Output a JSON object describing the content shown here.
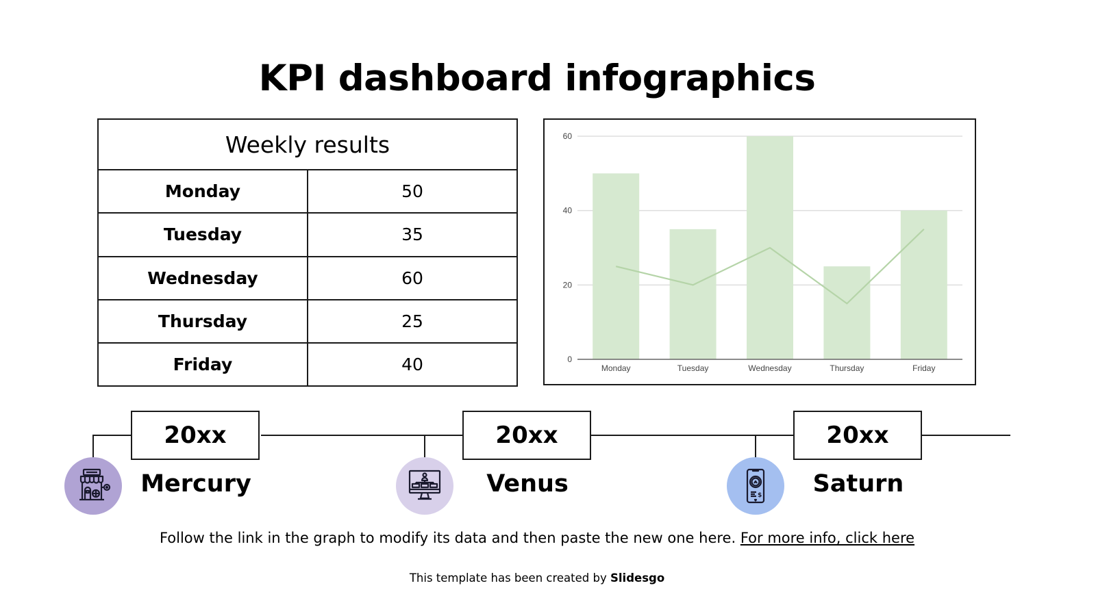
{
  "title": "KPI dashboard infographics",
  "table": {
    "header": "Weekly results",
    "rows": [
      {
        "day": "Monday",
        "value": "50"
      },
      {
        "day": "Tuesday",
        "value": "35"
      },
      {
        "day": "Wednesday",
        "value": "60"
      },
      {
        "day": "Thursday",
        "value": "25"
      },
      {
        "day": "Friday",
        "value": "40"
      }
    ]
  },
  "chart_data": {
    "type": "bar",
    "title": "",
    "xlabel": "",
    "ylabel": "",
    "categories": [
      "Monday",
      "Tuesday",
      "Wednesday",
      "Thursday",
      "Friday"
    ],
    "series": [
      {
        "name": "Bars",
        "type": "bar",
        "color": "#d6e9d0",
        "values": [
          50,
          35,
          60,
          25,
          40
        ]
      },
      {
        "name": "Line",
        "type": "line",
        "color": "#b5d4a8",
        "values": [
          25,
          20,
          30,
          15,
          35
        ]
      }
    ],
    "yticks": [
      "0",
      "20",
      "40",
      "60"
    ],
    "ylim": [
      0,
      60
    ],
    "grid": true,
    "legend": "none"
  },
  "timeline": [
    {
      "year": "20xx",
      "name": "Mercury",
      "icon": "store-icon",
      "color": "#b0a3d4"
    },
    {
      "year": "20xx",
      "name": "Venus",
      "icon": "monitor-hierarchy-icon",
      "color": "#d8d0ea"
    },
    {
      "year": "20xx",
      "name": "Saturn",
      "icon": "smartphone-clock-payment-icon",
      "color": "#a4bff0"
    }
  ],
  "note": {
    "text": "Follow the link in the graph to modify its data and then paste the new one here. ",
    "link": "For more info, click here"
  },
  "credit": {
    "text": "This template has been created by ",
    "brand": "Slidesgo"
  }
}
